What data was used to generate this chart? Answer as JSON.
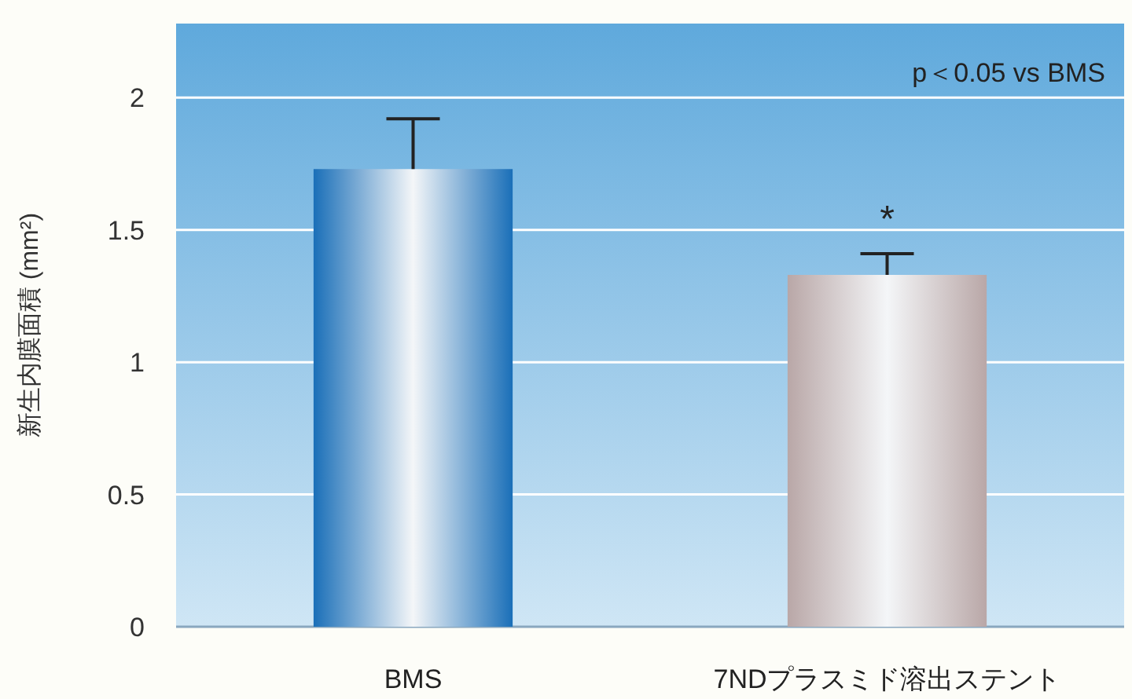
{
  "chart_data": {
    "type": "bar",
    "ylabel": "新生内膜面積 (mm²)",
    "categories": [
      "BMS",
      "7NDプラスミド溶出ステント"
    ],
    "values": [
      1.73,
      1.33
    ],
    "colors": [
      "#1a6fb8",
      "#b9a7a7"
    ],
    "errors": [
      [
        1.73,
        1.92
      ],
      [
        1.33,
        1.41
      ]
    ],
    "ylim": [
      0,
      2.28
    ],
    "yticks": [
      0,
      0.5,
      1,
      1.5,
      2
    ],
    "grid": "y",
    "annotations": [
      "*",
      "p＜0.05 vs BMS"
    ]
  }
}
